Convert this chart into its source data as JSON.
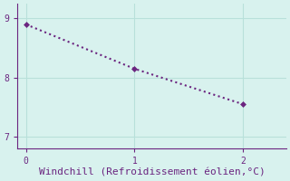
{
  "x": [
    0,
    1,
    2
  ],
  "y": [
    8.9,
    8.15,
    7.55
  ],
  "line_color": "#6B2580",
  "marker": "D",
  "marker_size": 3,
  "line_style": ":",
  "line_width": 1.5,
  "xlabel": "Windchill (Refroidissement éolien,°C)",
  "xlabel_color": "#6B2580",
  "xlabel_fontsize": 8,
  "background_color": "#d8f2ee",
  "grid_color": "#b8e0da",
  "tick_color": "#6B2580",
  "spine_color": "#6B2580",
  "ylim": [
    6.8,
    9.25
  ],
  "xlim": [
    -0.08,
    2.4
  ],
  "yticks": [
    7,
    8,
    9
  ],
  "xticks": [
    0,
    1,
    2
  ]
}
